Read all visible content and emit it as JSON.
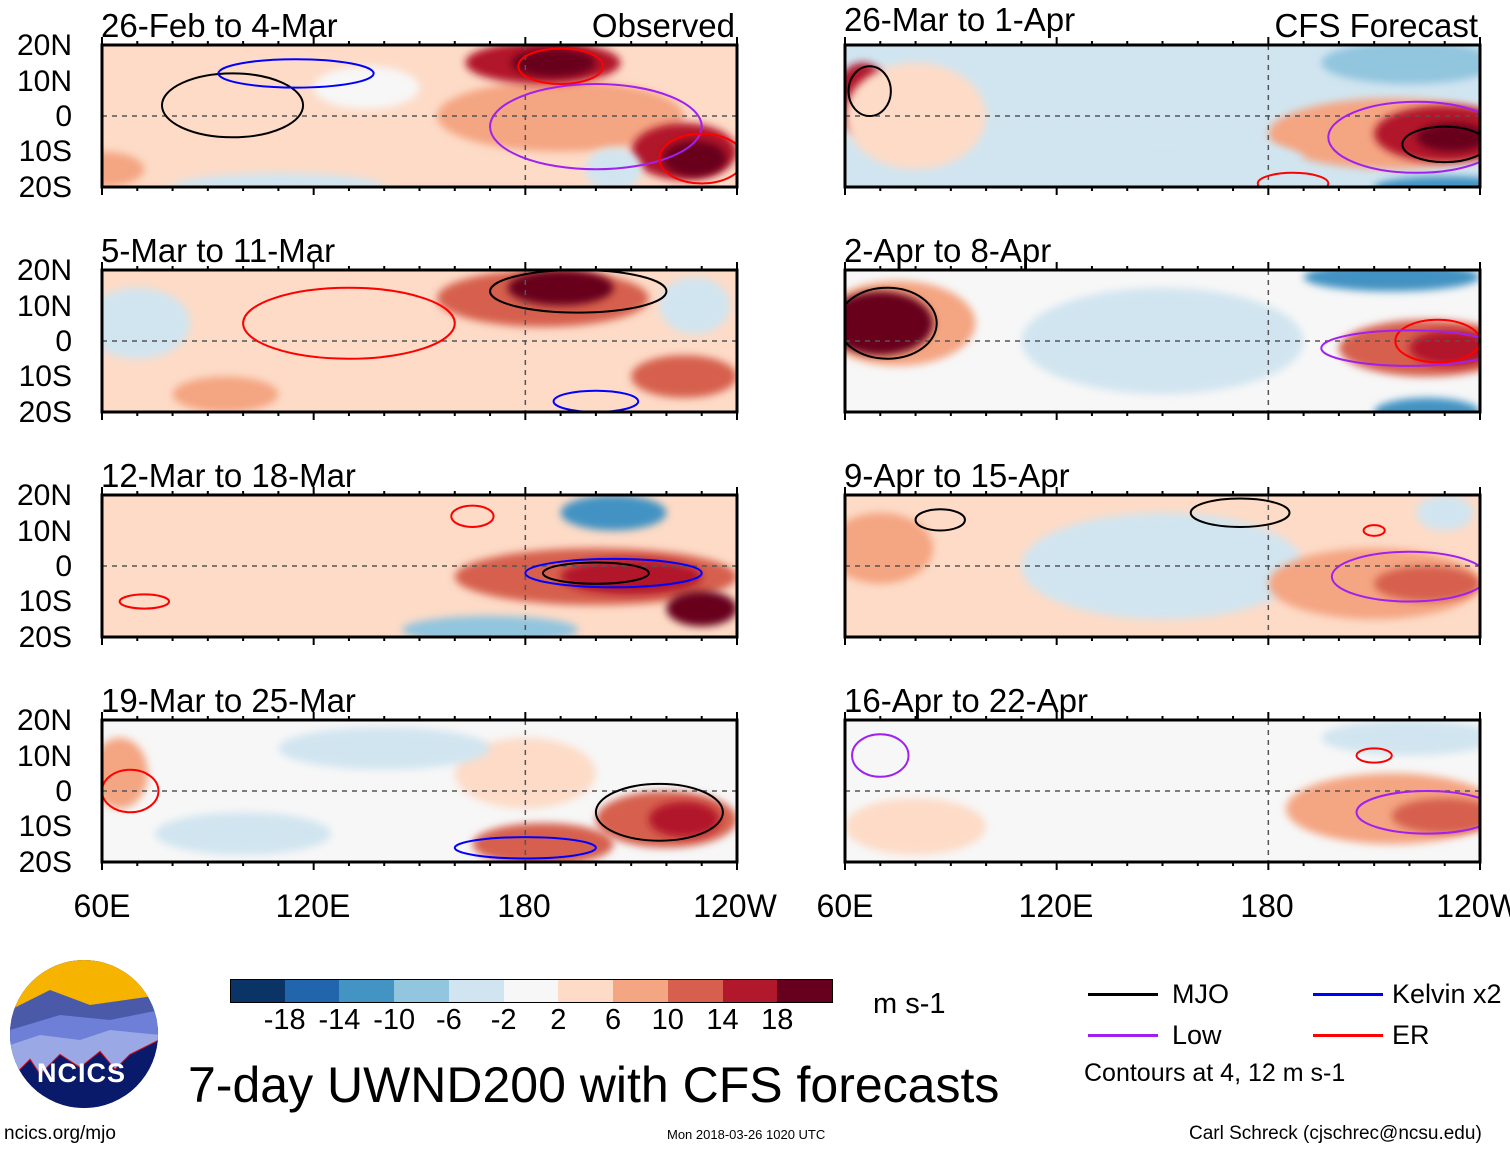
{
  "title": "7-day UWND200 with CFS forecasts",
  "columns": {
    "left": "Observed",
    "right": "CFS Forecast"
  },
  "lat_labels": [
    "20N",
    "10N",
    "0",
    "10S",
    "20S"
  ],
  "lon_labels": [
    "60E",
    "120E",
    "180",
    "120W"
  ],
  "colorbar": {
    "unit": "m s-1",
    "ticks": [
      "-18",
      "-14",
      "-10",
      "-6",
      "-2",
      "2",
      "6",
      "10",
      "14",
      "18"
    ],
    "colors": [
      "#0b3466",
      "#2166ac",
      "#4393c3",
      "#92c5de",
      "#d1e5f0",
      "#f7f7f7",
      "#fddbc7",
      "#f4a582",
      "#d6604d",
      "#b2182b",
      "#67001f"
    ]
  },
  "legend": {
    "items": [
      {
        "label": "MJO",
        "color": "#000000"
      },
      {
        "label": "Kelvin x2",
        "color": "#0000ff"
      },
      {
        "label": "Low",
        "color": "#a020f0"
      },
      {
        "label": "ER",
        "color": "#ff0000"
      }
    ],
    "note": "Contours at 4, 12 m s-1"
  },
  "footer": {
    "left": "ncics.org/mjo",
    "center": "Mon 2018-03-26 1020 UTC",
    "right": "Carl Schreck (cjschrec@ncsu.edu)",
    "logo_text": "NCICS"
  },
  "chart_data": {
    "type": "heatmap",
    "variable": "200-hPa zonal wind anomaly",
    "lon_range": [
      60,
      240
    ],
    "lat_range": [
      -20,
      20
    ],
    "panels": [
      {
        "title": "26-Feb to 4-Mar",
        "column": "left",
        "background": 3,
        "anomalies": [
          {
            "lon": 60,
            "lat": -15,
            "rx": 12,
            "ry": 5,
            "v": 8
          },
          {
            "lon": 190,
            "lat": 0,
            "rx": 35,
            "ry": 10,
            "v": 8
          },
          {
            "lon": 185,
            "lat": 15,
            "rx": 22,
            "ry": 6,
            "v": 14
          },
          {
            "lon": 188,
            "lat": 15,
            "rx": 12,
            "ry": 4,
            "v": 18
          },
          {
            "lon": 225,
            "lat": -10,
            "rx": 15,
            "ry": 8,
            "v": 14
          },
          {
            "lon": 228,
            "lat": -12,
            "rx": 9,
            "ry": 5,
            "v": 18
          },
          {
            "lon": 110,
            "lat": -20,
            "rx": 30,
            "ry": 4,
            "v": -4
          },
          {
            "lon": 205,
            "lat": -15,
            "rx": 8,
            "ry": 6,
            "v": -6
          },
          {
            "lon": 135,
            "lat": 8,
            "rx": 15,
            "ry": 6,
            "v": 0
          }
        ],
        "contours": [
          {
            "kind": "MJO",
            "lon": 97,
            "lat": 3,
            "rx": 20,
            "ry": 9
          },
          {
            "kind": "Kelvin",
            "lon": 115,
            "lat": 12,
            "rx": 22,
            "ry": 4
          },
          {
            "kind": "ER",
            "lon": 190,
            "lat": 14,
            "rx": 12,
            "ry": 5
          },
          {
            "kind": "Low",
            "lon": 200,
            "lat": -3,
            "rx": 30,
            "ry": 12
          },
          {
            "kind": "ER",
            "lon": 230,
            "lat": -12,
            "rx": 12,
            "ry": 7
          }
        ]
      },
      {
        "title": "5-Mar to 11-Mar",
        "column": "left",
        "background": 2,
        "anomalies": [
          {
            "lon": 140,
            "lat": 0,
            "rx": 40,
            "ry": 12,
            "v": 5
          },
          {
            "lon": 185,
            "lat": 12,
            "rx": 30,
            "ry": 8,
            "v": 12
          },
          {
            "lon": 190,
            "lat": 15,
            "rx": 15,
            "ry": 5,
            "v": 18
          },
          {
            "lon": 225,
            "lat": -10,
            "rx": 15,
            "ry": 6,
            "v": 12
          },
          {
            "lon": 70,
            "lat": 5,
            "rx": 15,
            "ry": 10,
            "v": -6
          },
          {
            "lon": 228,
            "lat": 10,
            "rx": 10,
            "ry": 8,
            "v": -4
          },
          {
            "lon": 95,
            "lat": -15,
            "rx": 15,
            "ry": 5,
            "v": 8
          }
        ],
        "contours": [
          {
            "kind": "ER",
            "lon": 130,
            "lat": 5,
            "rx": 30,
            "ry": 10
          },
          {
            "kind": "Kelvin",
            "lon": 200,
            "lat": -17,
            "rx": 12,
            "ry": 3
          },
          {
            "kind": "MJO",
            "lon": 195,
            "lat": 14,
            "rx": 25,
            "ry": 6
          }
        ]
      },
      {
        "title": "12-Mar to 18-Mar",
        "column": "left",
        "background": 2,
        "anomalies": [
          {
            "lon": 100,
            "lat": 5,
            "rx": 30,
            "ry": 10,
            "v": 4
          },
          {
            "lon": 200,
            "lat": -3,
            "rx": 40,
            "ry": 8,
            "v": 10
          },
          {
            "lon": 210,
            "lat": -3,
            "rx": 20,
            "ry": 5,
            "v": 16
          },
          {
            "lon": 230,
            "lat": -12,
            "rx": 10,
            "ry": 5,
            "v": 18
          },
          {
            "lon": 205,
            "lat": 15,
            "rx": 15,
            "ry": 5,
            "v": -12
          },
          {
            "lon": 170,
            "lat": -18,
            "rx": 25,
            "ry": 4,
            "v": -8
          }
        ],
        "contours": [
          {
            "kind": "MJO",
            "lon": 200,
            "lat": -2,
            "rx": 15,
            "ry": 3
          },
          {
            "kind": "Kelvin",
            "lon": 205,
            "lat": -2,
            "rx": 25,
            "ry": 4
          },
          {
            "kind": "ER",
            "lon": 72,
            "lat": -10,
            "rx": 7,
            "ry": 2
          },
          {
            "kind": "ER",
            "lon": 165,
            "lat": 14,
            "rx": 6,
            "ry": 3
          }
        ]
      },
      {
        "title": "19-Mar to 25-Mar",
        "column": "left",
        "background": 1,
        "anomalies": [
          {
            "lon": 180,
            "lat": 5,
            "rx": 20,
            "ry": 10,
            "v": 5
          },
          {
            "lon": 220,
            "lat": -8,
            "rx": 20,
            "ry": 8,
            "v": 12
          },
          {
            "lon": 225,
            "lat": -8,
            "rx": 10,
            "ry": 5,
            "v": 16
          },
          {
            "lon": 185,
            "lat": -15,
            "rx": 20,
            "ry": 6,
            "v": 12
          },
          {
            "lon": 140,
            "lat": 12,
            "rx": 30,
            "ry": 6,
            "v": -5
          },
          {
            "lon": 100,
            "lat": -12,
            "rx": 25,
            "ry": 6,
            "v": -4
          },
          {
            "lon": 65,
            "lat": 5,
            "rx": 8,
            "ry": 10,
            "v": 8
          }
        ],
        "contours": [
          {
            "kind": "MJO",
            "lon": 218,
            "lat": -6,
            "rx": 18,
            "ry": 8
          },
          {
            "kind": "ER",
            "lon": 68,
            "lat": 0,
            "rx": 8,
            "ry": 6
          },
          {
            "kind": "Kelvin",
            "lon": 180,
            "lat": -16,
            "rx": 20,
            "ry": 3
          }
        ]
      },
      {
        "title": "26-Mar to 1-Apr",
        "column": "right",
        "background": -3,
        "anomalies": [
          {
            "lon": 215,
            "lat": -5,
            "rx": 35,
            "ry": 10,
            "v": 8
          },
          {
            "lon": 230,
            "lat": -5,
            "rx": 20,
            "ry": 8,
            "v": 14
          },
          {
            "lon": 232,
            "lat": -6,
            "rx": 10,
            "ry": 4,
            "v": 18
          },
          {
            "lon": 65,
            "lat": 5,
            "rx": 8,
            "ry": 10,
            "v": 14
          },
          {
            "lon": 150,
            "lat": -12,
            "rx": 40,
            "ry": 6,
            "v": -6
          },
          {
            "lon": 220,
            "lat": 15,
            "rx": 25,
            "ry": 6,
            "v": -10
          },
          {
            "lon": 230,
            "lat": -20,
            "rx": 20,
            "ry": 3,
            "v": -14
          },
          {
            "lon": 80,
            "lat": 0,
            "rx": 20,
            "ry": 15,
            "v": 2
          }
        ],
        "contours": [
          {
            "kind": "MJO",
            "lon": 67,
            "lat": 7,
            "rx": 6,
            "ry": 7
          },
          {
            "kind": "Low",
            "lon": 222,
            "lat": -6,
            "rx": 25,
            "ry": 10
          },
          {
            "kind": "MJO",
            "lon": 230,
            "lat": -8,
            "rx": 12,
            "ry": 5
          },
          {
            "kind": "ER",
            "lon": 187,
            "lat": -19,
            "rx": 10,
            "ry": 3
          }
        ]
      },
      {
        "title": "2-Apr to 8-Apr",
        "column": "right",
        "background": -2,
        "anomalies": [
          {
            "lon": 75,
            "lat": 5,
            "rx": 22,
            "ry": 12,
            "v": 8
          },
          {
            "lon": 70,
            "lat": 5,
            "rx": 15,
            "ry": 9,
            "v": 18
          },
          {
            "lon": 225,
            "lat": -2,
            "rx": 25,
            "ry": 8,
            "v": 10
          },
          {
            "lon": 232,
            "lat": -2,
            "rx": 12,
            "ry": 5,
            "v": 14
          },
          {
            "lon": 215,
            "lat": 18,
            "rx": 25,
            "ry": 4,
            "v": -14
          },
          {
            "lon": 225,
            "lat": -20,
            "rx": 15,
            "ry": 4,
            "v": -12
          },
          {
            "lon": 150,
            "lat": 0,
            "rx": 40,
            "ry": 15,
            "v": -3
          }
        ],
        "contours": [
          {
            "kind": "MJO",
            "lon": 72,
            "lat": 5,
            "rx": 14,
            "ry": 10
          },
          {
            "kind": "ER",
            "lon": 228,
            "lat": 0,
            "rx": 12,
            "ry": 6
          },
          {
            "kind": "Low",
            "lon": 220,
            "lat": -2,
            "rx": 25,
            "ry": 5
          }
        ]
      },
      {
        "title": "9-Apr to 15-Apr",
        "column": "right",
        "background": 2,
        "anomalies": [
          {
            "lon": 150,
            "lat": 0,
            "rx": 40,
            "ry": 15,
            "v": -3
          },
          {
            "lon": 210,
            "lat": -5,
            "rx": 30,
            "ry": 10,
            "v": 6
          },
          {
            "lon": 225,
            "lat": -5,
            "rx": 15,
            "ry": 5,
            "v": 10
          },
          {
            "lon": 70,
            "lat": 5,
            "rx": 15,
            "ry": 10,
            "v": 6
          },
          {
            "lon": 230,
            "lat": 15,
            "rx": 8,
            "ry": 5,
            "v": -5
          }
        ],
        "contours": [
          {
            "kind": "MJO",
            "lon": 172,
            "lat": 15,
            "rx": 14,
            "ry": 4
          },
          {
            "kind": "MJO",
            "lon": 87,
            "lat": 13,
            "rx": 7,
            "ry": 3
          },
          {
            "kind": "Low",
            "lon": 220,
            "lat": -3,
            "rx": 22,
            "ry": 7
          },
          {
            "kind": "ER",
            "lon": 210,
            "lat": 10,
            "rx": 3,
            "ry": 1.5
          }
        ]
      },
      {
        "title": "16-Apr to 22-Apr",
        "column": "right",
        "background": 0,
        "anomalies": [
          {
            "lon": 150,
            "lat": 5,
            "rx": 40,
            "ry": 15,
            "v": -2
          },
          {
            "lon": 215,
            "lat": -5,
            "rx": 30,
            "ry": 10,
            "v": 6
          },
          {
            "lon": 230,
            "lat": -7,
            "rx": 15,
            "ry": 5,
            "v": 10
          },
          {
            "lon": 220,
            "lat": 15,
            "rx": 25,
            "ry": 5,
            "v": -4
          },
          {
            "lon": 80,
            "lat": -10,
            "rx": 20,
            "ry": 8,
            "v": 3
          }
        ],
        "contours": [
          {
            "kind": "Low",
            "lon": 70,
            "lat": 10,
            "rx": 8,
            "ry": 6
          },
          {
            "kind": "Low",
            "lon": 225,
            "lat": -6,
            "rx": 20,
            "ry": 6
          },
          {
            "kind": "ER",
            "lon": 210,
            "lat": 10,
            "rx": 5,
            "ry": 2
          }
        ]
      }
    ]
  }
}
